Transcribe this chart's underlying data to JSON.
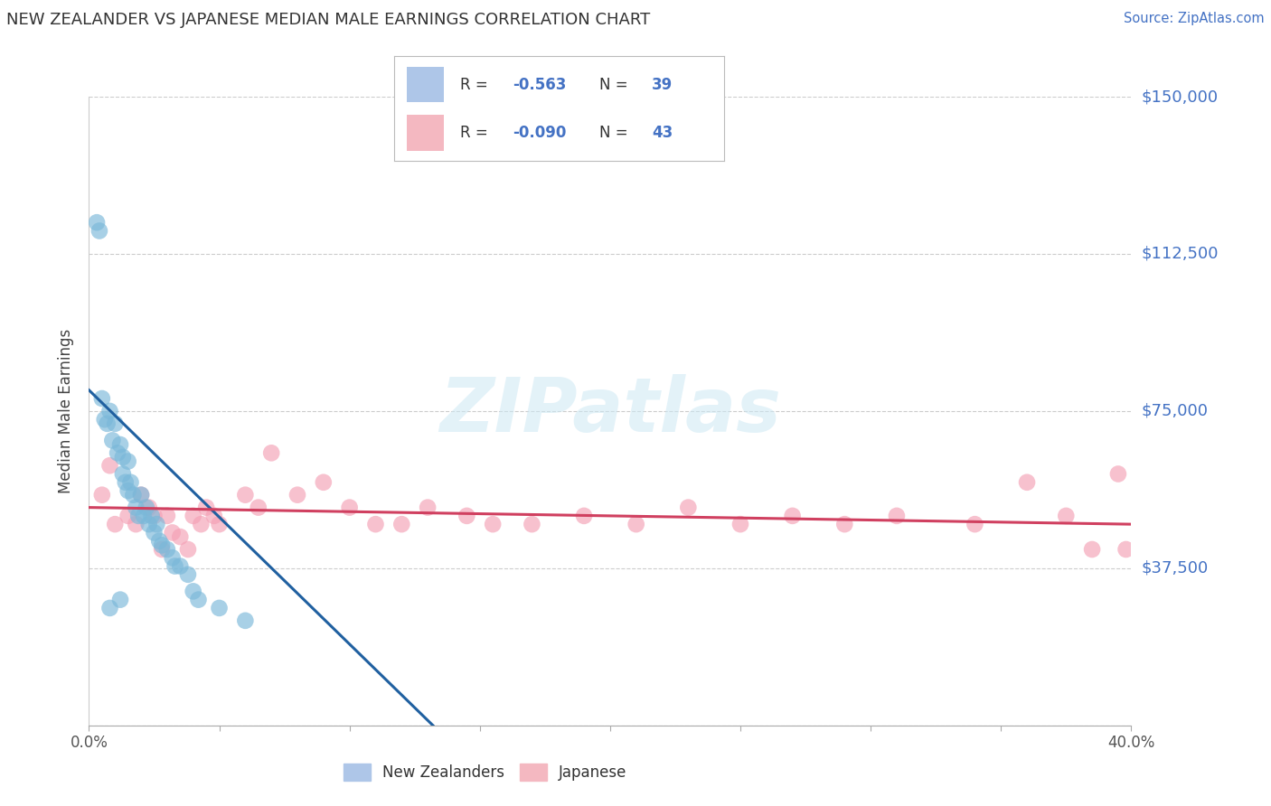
{
  "title": "NEW ZEALANDER VS JAPANESE MEDIAN MALE EARNINGS CORRELATION CHART",
  "source": "Source: ZipAtlas.com",
  "ylabel": "Median Male Earnings",
  "yticks": [
    0,
    37500,
    75000,
    112500,
    150000
  ],
  "ytick_labels": [
    "",
    "$37,500",
    "$75,000",
    "$112,500",
    "$150,000"
  ],
  "xlim": [
    0.0,
    0.4
  ],
  "ylim": [
    0,
    150000
  ],
  "watermark_text": "ZIPatlas",
  "nz_scatter_x": [
    0.003,
    0.004,
    0.005,
    0.006,
    0.007,
    0.008,
    0.009,
    0.01,
    0.011,
    0.012,
    0.013,
    0.013,
    0.014,
    0.015,
    0.015,
    0.016,
    0.017,
    0.018,
    0.019,
    0.02,
    0.021,
    0.022,
    0.023,
    0.024,
    0.025,
    0.026,
    0.027,
    0.028,
    0.03,
    0.032,
    0.033,
    0.035,
    0.038,
    0.04,
    0.042,
    0.05,
    0.06,
    0.008,
    0.012
  ],
  "nz_scatter_y": [
    120000,
    118000,
    78000,
    73000,
    72000,
    75000,
    68000,
    72000,
    65000,
    67000,
    64000,
    60000,
    58000,
    63000,
    56000,
    58000,
    55000,
    52000,
    50000,
    55000,
    50000,
    52000,
    48000,
    50000,
    46000,
    48000,
    44000,
    43000,
    42000,
    40000,
    38000,
    38000,
    36000,
    32000,
    30000,
    28000,
    25000,
    28000,
    30000
  ],
  "jp_scatter_x": [
    0.005,
    0.008,
    0.01,
    0.015,
    0.018,
    0.02,
    0.023,
    0.025,
    0.028,
    0.03,
    0.032,
    0.035,
    0.038,
    0.04,
    0.043,
    0.045,
    0.048,
    0.05,
    0.06,
    0.065,
    0.07,
    0.08,
    0.09,
    0.1,
    0.11,
    0.12,
    0.13,
    0.145,
    0.155,
    0.17,
    0.19,
    0.21,
    0.23,
    0.25,
    0.27,
    0.29,
    0.31,
    0.34,
    0.36,
    0.375,
    0.385,
    0.395,
    0.398
  ],
  "jp_scatter_y": [
    55000,
    62000,
    48000,
    50000,
    48000,
    55000,
    52000,
    50000,
    42000,
    50000,
    46000,
    45000,
    42000,
    50000,
    48000,
    52000,
    50000,
    48000,
    55000,
    52000,
    65000,
    55000,
    58000,
    52000,
    48000,
    48000,
    52000,
    50000,
    48000,
    48000,
    50000,
    48000,
    52000,
    48000,
    50000,
    48000,
    50000,
    48000,
    58000,
    50000,
    42000,
    60000,
    42000
  ],
  "nz_line_x": [
    0.0,
    0.132
  ],
  "nz_line_y": [
    80000,
    0
  ],
  "jp_line_x": [
    0.0,
    0.4
  ],
  "jp_line_y": [
    52000,
    48000
  ],
  "nz_color": "#7ab8d9",
  "jp_color": "#f4a0b5",
  "nz_line_color": "#2060a0",
  "jp_line_color": "#d04060",
  "background_color": "#ffffff",
  "grid_color": "#cccccc",
  "title_color": "#333333",
  "source_color": "#4472c4",
  "ytick_color": "#4472c4",
  "legend_r_color": "#333333",
  "legend_n_color": "#4472c4",
  "legend_nz_patch": "#aec6e8",
  "legend_jp_patch": "#f4b8c1",
  "bottom_legend_nz_label": "New Zealanders",
  "bottom_legend_jp_label": "Japanese",
  "nz_r": "-0.563",
  "nz_n": "39",
  "jp_r": "-0.090",
  "jp_n": "43"
}
